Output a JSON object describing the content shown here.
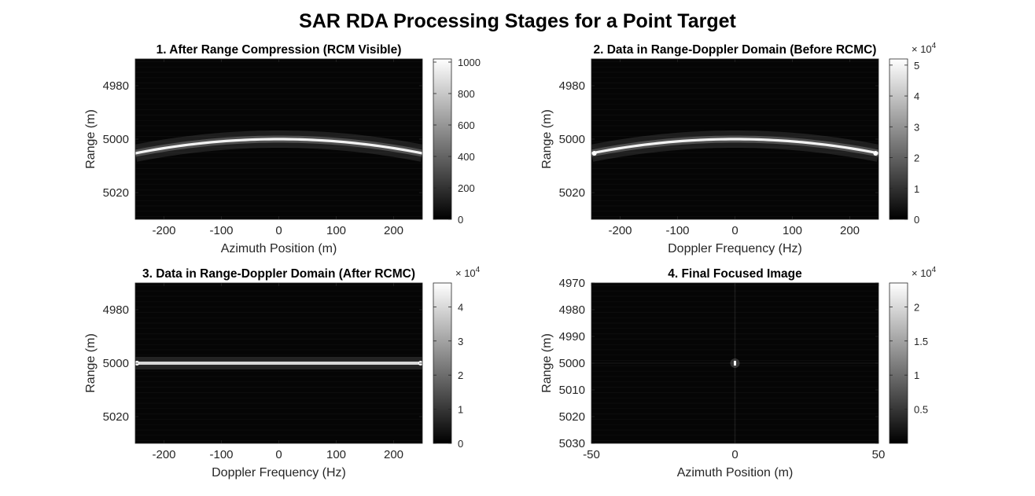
{
  "figure": {
    "title": "SAR RDA Processing Stages for a Point Target"
  },
  "chart_data": [
    {
      "type": "heatmap",
      "title": "1. After Range Compression (RCM Visible)",
      "xlabel": "Azimuth Position (m)",
      "ylabel": "Range (m)",
      "xlim": [
        -250,
        250
      ],
      "ylim": [
        4970,
        5030
      ],
      "y_reversed": true,
      "xticks": [
        -200,
        -100,
        0,
        100,
        200
      ],
      "yticks": [
        4980,
        5000,
        5020
      ],
      "colormap": "gray",
      "clim": [
        0,
        1020
      ],
      "colorbar_ticks": [
        0,
        200,
        400,
        600,
        800,
        1000
      ],
      "colorbar_multiplier": "",
      "feature": {
        "kind": "curve",
        "x_range": [
          -250,
          250
        ],
        "range_at_center": 5000,
        "range_at_edges": 5005.3,
        "peak_value": 1000
      }
    },
    {
      "type": "heatmap",
      "title": "2. Data in Range-Doppler Domain (Before RCMC)",
      "xlabel": "Doppler Frequency (Hz)",
      "ylabel": "Range (m)",
      "xlim": [
        -250,
        250
      ],
      "ylim": [
        4970,
        5030
      ],
      "y_reversed": true,
      "xticks": [
        -200,
        -100,
        0,
        100,
        200
      ],
      "yticks": [
        4980,
        5000,
        5020
      ],
      "colormap": "gray",
      "clim": [
        0,
        5.2
      ],
      "colorbar_ticks": [
        0,
        1,
        2,
        3,
        4,
        5
      ],
      "colorbar_multiplier": "4",
      "feature": {
        "kind": "curve",
        "x_range": [
          -250,
          250
        ],
        "range_at_center": 5000,
        "range_at_edges": 5005.3,
        "peak_value": 5.0
      }
    },
    {
      "type": "heatmap",
      "title": "3. Data in Range-Doppler Domain (After RCMC)",
      "xlabel": "Doppler Frequency (Hz)",
      "ylabel": "Range (m)",
      "xlim": [
        -250,
        250
      ],
      "ylim": [
        4970,
        5030
      ],
      "y_reversed": true,
      "xticks": [
        -200,
        -100,
        0,
        100,
        200
      ],
      "yticks": [
        4980,
        5000,
        5020
      ],
      "colormap": "gray",
      "clim": [
        0,
        4.7
      ],
      "colorbar_ticks": [
        0,
        1,
        2,
        3,
        4
      ],
      "colorbar_multiplier": "4",
      "feature": {
        "kind": "line",
        "x_range": [
          -250,
          250
        ],
        "range": 5000,
        "peak_value": 4.5
      }
    },
    {
      "type": "heatmap",
      "title": "4. Final Focused Image",
      "xlabel": "Azimuth Position (m)",
      "ylabel": "Range (m)",
      "xlim": [
        -50,
        50
      ],
      "ylim": [
        4970,
        5030
      ],
      "y_reversed": true,
      "xticks": [
        -50,
        0,
        50
      ],
      "yticks": [
        4970,
        4980,
        4990,
        5000,
        5010,
        5020,
        5030
      ],
      "colormap": "gray",
      "clim": [
        0,
        2.35
      ],
      "colorbar_ticks": [
        0.5,
        1,
        1.5,
        2
      ],
      "colorbar_multiplier": "4",
      "feature": {
        "kind": "point",
        "x": 0,
        "range": 5000,
        "peak_value": 2.3
      }
    }
  ]
}
